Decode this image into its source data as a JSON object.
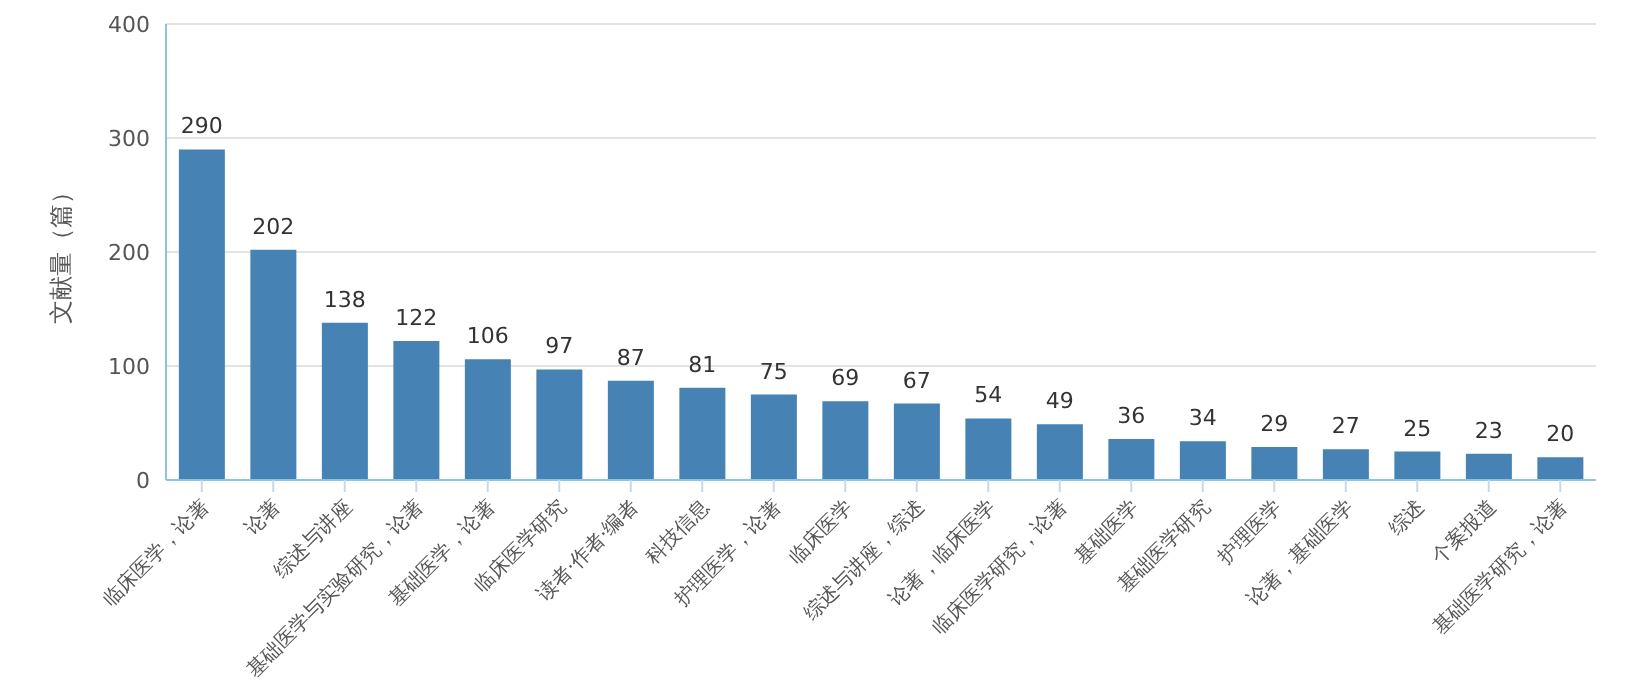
{
  "chart_data": {
    "type": "bar",
    "ylabel": "文献量（篇）",
    "categories": [
      "临床医学，论著",
      "论著",
      "综述与讲座",
      "基础医学与实验研究，论著",
      "基础医学，论著",
      "临床医学研究",
      "读者·作者·编者",
      "科技信息",
      "护理医学，论著",
      "临床医学",
      "综述与讲座，综述",
      "论著，临床医学",
      "临床医学研究，论著",
      "基础医学",
      "基础医学研究",
      "护理医学",
      "论著，基础医学",
      "综述",
      "个案报道",
      "基础医学研究，论著"
    ],
    "values": [
      290,
      202,
      138,
      122,
      106,
      97,
      87,
      81,
      75,
      69,
      67,
      54,
      49,
      36,
      34,
      29,
      27,
      25,
      23,
      20
    ],
    "color": "#4682b4",
    "ylim": [
      0,
      400
    ],
    "yticks": [
      0,
      100,
      200,
      300,
      400
    ],
    "grid": "y",
    "data_labels": true
  }
}
